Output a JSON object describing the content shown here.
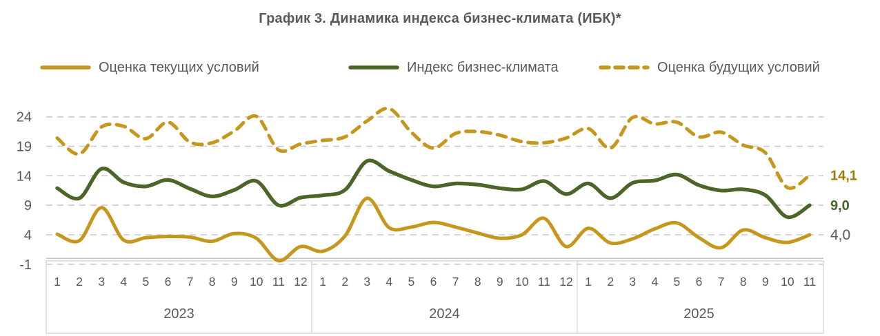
{
  "title": "График 3. Динамика индекса бизнес-климата (ИБК)*",
  "legend": [
    {
      "label": "Оценка текущих условий",
      "style": "solid"
    },
    {
      "label": "Индекс бизнес-климата",
      "style": "solid_green"
    },
    {
      "label": "Оценка будущих условий",
      "style": "dashed"
    }
  ],
  "colors": {
    "gold": "#C5971D",
    "green": "#4C6528",
    "gold_label": "#9C7C00",
    "green_label": "#44672A",
    "text": "#595959",
    "grid": "#C9C9C9",
    "axis_line": "#BFBFBF",
    "box_border": "#D6D6D6"
  },
  "chart_data": {
    "type": "line",
    "title": "График 3. Динамика индекса бизнес-климата (ИБК)*",
    "grid": "horizontal-dashed",
    "ylim": [
      -1,
      26
    ],
    "y_ticks": [
      24,
      19,
      14,
      9,
      4,
      -1
    ],
    "x_months": [
      "1",
      "2",
      "3",
      "4",
      "5",
      "6",
      "7",
      "8",
      "9",
      "10",
      "11",
      "12",
      "1",
      "2",
      "3",
      "4",
      "5",
      "6",
      "7",
      "8",
      "9",
      "10",
      "11",
      "12",
      "1",
      "2",
      "3",
      "4",
      "5",
      "6",
      "7",
      "8",
      "9",
      "10",
      "11"
    ],
    "year_groups": [
      {
        "label": "2023",
        "months": 12
      },
      {
        "label": "2024",
        "months": 12
      },
      {
        "label": "2025",
        "months": 11
      }
    ],
    "series": [
      {
        "name": "Оценка будущих условий",
        "key": "future-conditions",
        "style": "dashed",
        "color_key": "gold",
        "end_label": "14,1",
        "end_label_color_key": "gold_label",
        "end_label_bold": true,
        "values": [
          20.4,
          17.7,
          22.3,
          22.4,
          20.3,
          23.1,
          19.7,
          19.6,
          21.6,
          24.1,
          18.4,
          19.4,
          20.0,
          20.6,
          23.3,
          25.4,
          21.4,
          18.7,
          21.2,
          21.5,
          20.9,
          19.8,
          19.6,
          20.4,
          22.0,
          18.7,
          23.9,
          22.8,
          23.1,
          20.6,
          21.4,
          19.2,
          17.9,
          12.0,
          14.1
        ]
      },
      {
        "name": "Оценка текущих условий",
        "key": "current-conditions",
        "style": "solid",
        "color_key": "gold",
        "end_label": "4,0",
        "end_label_color_key": "text",
        "end_label_bold": false,
        "values": [
          4.1,
          3.0,
          8.6,
          3.1,
          3.5,
          3.7,
          3.6,
          2.9,
          4.2,
          3.4,
          -0.4,
          2.0,
          1.2,
          3.8,
          10.2,
          5.2,
          5.3,
          6.1,
          5.3,
          4.3,
          3.4,
          4.0,
          6.8,
          2.0,
          5.1,
          2.6,
          3.3,
          5.0,
          6.0,
          3.5,
          1.8,
          4.8,
          3.5,
          2.7,
          4.0
        ]
      },
      {
        "name": "Индекс бизнес-климата",
        "key": "business-climate-index",
        "style": "solid",
        "color_key": "green",
        "end_label": "9,0",
        "end_label_color_key": "green_label",
        "end_label_bold": true,
        "values": [
          11.9,
          10.2,
          15.2,
          12.9,
          12.2,
          13.3,
          11.8,
          10.5,
          11.6,
          13.1,
          9.0,
          10.3,
          10.7,
          11.6,
          16.5,
          14.8,
          13.3,
          12.2,
          12.7,
          12.5,
          11.9,
          11.7,
          13.1,
          10.9,
          12.7,
          10.2,
          12.8,
          13.2,
          14.2,
          12.4,
          11.5,
          11.7,
          10.7,
          7.0,
          9.0
        ]
      }
    ]
  }
}
